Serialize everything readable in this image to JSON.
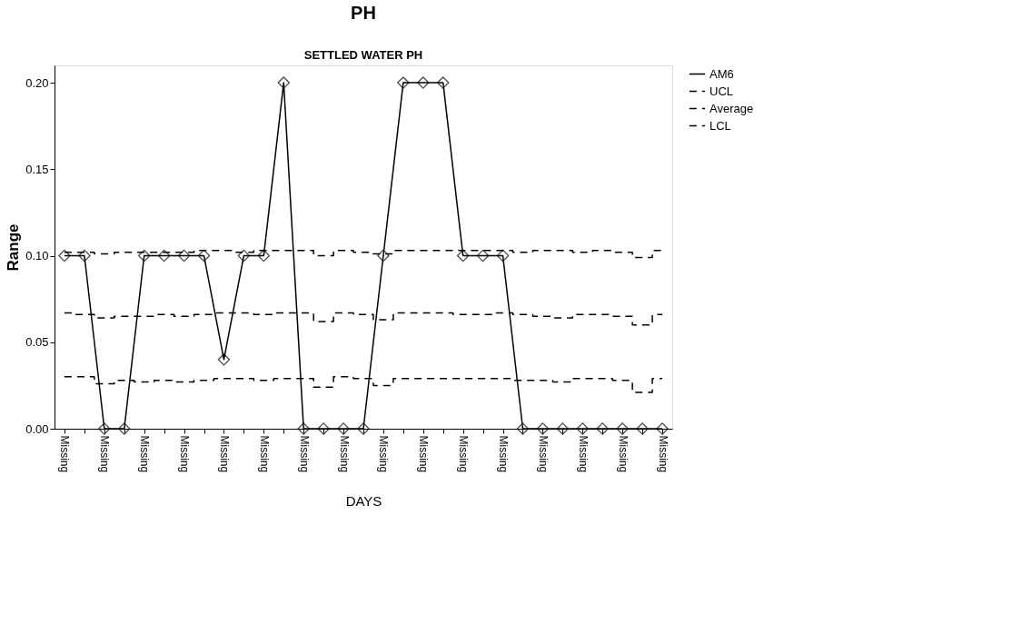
{
  "chart_data": {
    "type": "line",
    "title": "PH",
    "subtitle": "SETTLED  WATER PH",
    "xlabel": "DAYS",
    "ylabel": "Range",
    "categories": [
      "Missing",
      null,
      "Missing",
      null,
      "Missing",
      null,
      "Missing",
      null,
      "Missing",
      null,
      "Missing",
      null,
      "Missing",
      null,
      "Missing",
      null,
      "Missing",
      null,
      "Missing",
      null,
      "Missing",
      null,
      "Missing",
      null,
      "Missing",
      null,
      "Missing",
      null,
      "Missing",
      null,
      "Missing"
    ],
    "ylim": [
      0,
      0.21
    ],
    "yticks": [
      {
        "value": 0,
        "label": "0.00"
      },
      {
        "value": 0.05,
        "label": "0.05"
      },
      {
        "value": 0.1,
        "label": "0.10"
      },
      {
        "value": 0.15,
        "label": "0.15"
      },
      {
        "value": 0.2,
        "label": "0.20"
      }
    ],
    "grid": false,
    "legend": "top right",
    "series": [
      {
        "name": "AM6",
        "type": "line",
        "color": "#000000",
        "marker": "diamond",
        "line_style": "solid",
        "values": [
          0.1,
          0.1,
          0,
          0,
          0.1,
          0.1,
          0.1,
          0.1,
          0.04,
          0.1,
          0.1,
          0.2,
          0,
          0,
          0,
          0,
          0.1,
          0.2,
          0.2,
          0.2,
          0.1,
          0.1,
          0.1,
          0,
          0,
          0,
          0,
          0,
          0,
          0,
          0
        ]
      },
      {
        "name": "UCL",
        "type": "step",
        "color": "#000000",
        "marker": "none",
        "line_style": "dashed",
        "values": [
          0.102,
          0.102,
          0.101,
          0.102,
          0.102,
          0.102,
          0.102,
          0.103,
          0.103,
          0.102,
          0.103,
          0.103,
          0.103,
          0.1,
          0.103,
          0.102,
          0.101,
          0.103,
          0.103,
          0.103,
          0.103,
          0.103,
          0.103,
          0.102,
          0.103,
          0.103,
          0.102,
          0.103,
          0.102,
          0.099,
          0.103
        ]
      },
      {
        "name": "Average",
        "type": "step",
        "color": "#000000",
        "marker": "none",
        "line_style": "dashed",
        "values": [
          0.067,
          0.066,
          0.064,
          0.065,
          0.065,
          0.066,
          0.065,
          0.066,
          0.067,
          0.067,
          0.066,
          0.067,
          0.067,
          0.062,
          0.067,
          0.066,
          0.063,
          0.067,
          0.067,
          0.067,
          0.066,
          0.066,
          0.067,
          0.066,
          0.065,
          0.064,
          0.066,
          0.066,
          0.065,
          0.06,
          0.066
        ]
      },
      {
        "name": "LCL",
        "type": "step",
        "color": "#000000",
        "marker": "none",
        "line_style": "dashed",
        "values": [
          0.03,
          0.03,
          0.026,
          0.028,
          0.027,
          0.028,
          0.027,
          0.028,
          0.029,
          0.029,
          0.028,
          0.029,
          0.029,
          0.024,
          0.03,
          0.029,
          0.025,
          0.029,
          0.029,
          0.029,
          0.029,
          0.029,
          0.029,
          0.028,
          0.028,
          0.027,
          0.029,
          0.029,
          0.028,
          0.021,
          0.029
        ]
      }
    ]
  }
}
